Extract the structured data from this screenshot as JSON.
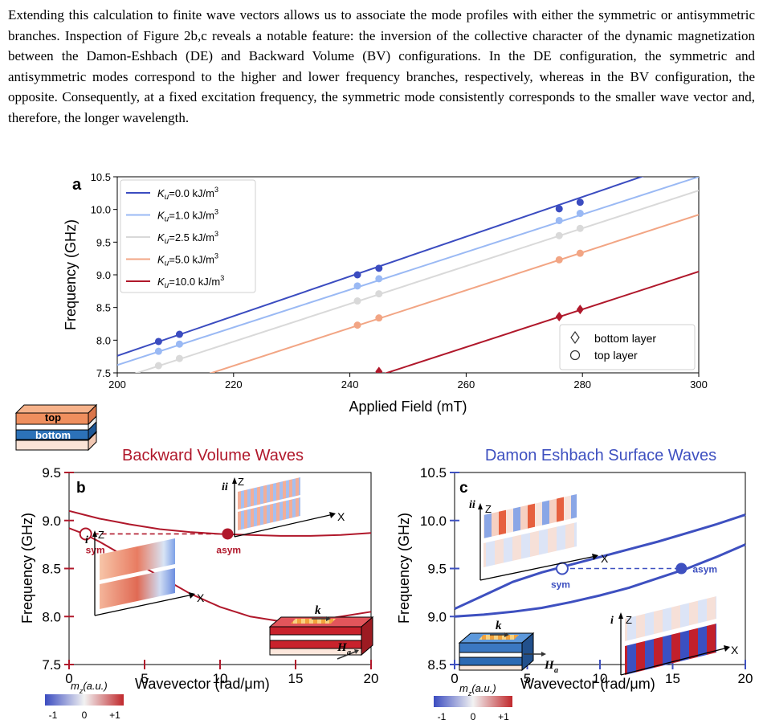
{
  "paragraph": "Extending this calculation to finite wave vectors allows us to associate the mode profiles with either the symmetric or antisymmetric branches. Inspection of Figure 2b,c reveals a notable feature: the inversion of the collective character of the dynamic magnetization between the Damon-Eshbach (DE) and Backward Volume (BV) configurations. In the DE configuration, the symmetric and antisymmetric modes correspond to the higher and lower frequency branches, respectively, whereas in the BV configuration, the opposite. Consequently, at a fixed excitation frequency, the symmetric mode consistently corresponds to the smaller wave vector and, therefore, the longer wavelength.",
  "figure": {
    "colors": {
      "bv": "#b0182b",
      "de": "#3e50c0",
      "k0": "#3b4cc0",
      "k1": "#9ab9f4",
      "k25": "#d9d9d9",
      "k5": "#f2a584",
      "k10": "#b0182b"
    },
    "stack_labels": {
      "top": "top",
      "bottom": "bottom"
    },
    "colorbar": {
      "label": "m_z(a.u.)",
      "ticks": [
        "-1",
        "0",
        "+1"
      ]
    },
    "vectors": {
      "k": "k",
      "H": "H",
      "H_sub": "a"
    }
  },
  "chart_data": [
    {
      "panel": "a",
      "type": "line",
      "xlabel": "Applied Field (mT)",
      "ylabel": "Frequency (GHz)",
      "xlim": [
        200,
        300
      ],
      "ylim": [
        7.5,
        10.5
      ],
      "xticks": [
        "200",
        "220",
        "240",
        "260",
        "280",
        "300"
      ],
      "yticks": [
        "7.5",
        "8.0",
        "8.5",
        "9.0",
        "9.5",
        "10.0",
        "10.5"
      ],
      "legend_position": "top-left",
      "series": [
        {
          "name": "Ku=0.0 kJ/m3",
          "label_main": "K",
          "label_sub": "u",
          "label_tail": "=0.0 kJ/m",
          "label_sup": "3",
          "line": [
            [
              200,
              7.76
            ],
            [
              300,
              10.8
            ]
          ],
          "points": [
            [
              207.1,
              7.98
            ],
            [
              210.7,
              8.09
            ],
            [
              241.3,
              9.0
            ],
            [
              245.0,
              9.1
            ],
            [
              276.0,
              10.01
            ],
            [
              279.6,
              10.11
            ]
          ]
        },
        {
          "name": "Ku=1.0 kJ/m3",
          "label_main": "K",
          "label_sub": "u",
          "label_tail": "=1.0 kJ/m",
          "label_sup": "3",
          "line": [
            [
              200,
              7.62
            ],
            [
              300,
              10.5
            ]
          ],
          "points": [
            [
              207.1,
              7.83
            ],
            [
              210.7,
              7.94
            ],
            [
              241.3,
              8.83
            ],
            [
              245.0,
              8.94
            ],
            [
              276.0,
              9.83
            ],
            [
              279.6,
              9.94
            ]
          ]
        },
        {
          "name": "Ku=2.5 kJ/m3",
          "label_main": "K",
          "label_sub": "u",
          "label_tail": "=2.5 kJ/m",
          "label_sup": "3",
          "line": [
            [
              200,
              7.4
            ],
            [
              300,
              10.29
            ]
          ],
          "points": [
            [
              207.1,
              7.61
            ],
            [
              210.7,
              7.72
            ],
            [
              241.3,
              8.6
            ],
            [
              245.0,
              8.71
            ],
            [
              276.0,
              9.6
            ],
            [
              279.6,
              9.71
            ]
          ]
        },
        {
          "name": "Ku=5.0 kJ/m3",
          "label_main": "K",
          "label_sub": "u",
          "label_tail": "=5.0 kJ/m",
          "label_sup": "3",
          "line": [
            [
              200,
              7.03
            ],
            [
              300,
              9.92
            ]
          ],
          "points": [
            [
              241.3,
              8.23
            ],
            [
              245.0,
              8.34
            ],
            [
              276.0,
              9.23
            ],
            [
              279.6,
              9.33
            ]
          ]
        },
        {
          "name": "Ku=10.0 kJ/m3",
          "label_main": "K",
          "label_sub": "u",
          "label_tail": "=10.0 kJ/m",
          "label_sup": "3",
          "line": [
            [
              200,
              6.16
            ],
            [
              300,
              9.05
            ]
          ],
          "points": [
            [
              245.0,
              7.52
            ],
            [
              276.0,
              8.36
            ],
            [
              279.6,
              8.47
            ]
          ]
        }
      ],
      "marker_legend": [
        {
          "symbol": "diamond",
          "label": "bottom layer"
        },
        {
          "symbol": "circle",
          "label": "top layer"
        }
      ]
    },
    {
      "panel": "b",
      "type": "line",
      "title": "Backward Volume Waves",
      "xlabel": "Wavevector (rad/μm)",
      "ylabel": "Frequency (GHz)",
      "xlim": [
        0,
        20
      ],
      "ylim": [
        7.5,
        9.5
      ],
      "xticks": [
        "0",
        "5",
        "10",
        "15",
        "20"
      ],
      "yticks": [
        "7.5",
        "8.0",
        "8.5",
        "9.0",
        "9.5"
      ],
      "series": [
        {
          "branch": "upper",
          "x": [
            0,
            1,
            2,
            3,
            4,
            6,
            8,
            10,
            12,
            14,
            16,
            18,
            20
          ],
          "y": [
            9.1,
            9.06,
            9.02,
            8.99,
            8.96,
            8.91,
            8.88,
            8.86,
            8.85,
            8.84,
            8.84,
            8.85,
            8.87
          ]
        },
        {
          "branch": "lower",
          "x": [
            0,
            1,
            2,
            4,
            6,
            8,
            10,
            12,
            14,
            16,
            18,
            20
          ],
          "y": [
            8.92,
            8.86,
            8.78,
            8.6,
            8.42,
            8.24,
            8.1,
            8.0,
            7.95,
            7.95,
            8.0,
            8.05
          ]
        }
      ],
      "annotations": [
        {
          "label": "sym",
          "x": 1.1,
          "y": 8.86,
          "marker": "open-circle"
        },
        {
          "label": "asym",
          "x": 10.5,
          "y": 8.86,
          "marker": "filled-circle"
        },
        {
          "label": "i"
        },
        {
          "label": "ii"
        }
      ]
    },
    {
      "panel": "c",
      "type": "line",
      "title": "Damon Eshbach Surface Waves",
      "xlabel": "Wavevector (rad/μm)",
      "ylabel": "Frequency (GHz)",
      "xlim": [
        0,
        20
      ],
      "ylim": [
        8.5,
        10.5
      ],
      "xticks": [
        "0",
        "5",
        "10",
        "15",
        "20"
      ],
      "yticks": [
        "8.5",
        "9.0",
        "9.5",
        "10.0",
        "10.5"
      ],
      "series": [
        {
          "branch": "upper",
          "x": [
            0,
            2,
            4,
            6,
            8,
            10,
            12,
            14,
            16,
            18,
            20
          ],
          "y": [
            9.08,
            9.22,
            9.36,
            9.46,
            9.54,
            9.62,
            9.7,
            9.78,
            9.87,
            9.96,
            10.06
          ]
        },
        {
          "branch": "lower",
          "x": [
            0,
            2,
            4,
            6,
            8,
            10,
            12,
            14,
            16,
            18,
            20
          ],
          "y": [
            9.0,
            9.02,
            9.05,
            9.09,
            9.15,
            9.22,
            9.3,
            9.4,
            9.5,
            9.62,
            9.75
          ]
        }
      ],
      "annotations": [
        {
          "label": "sym",
          "x": 7.4,
          "y": 9.5,
          "marker": "open-circle"
        },
        {
          "label": "asym",
          "x": 15.6,
          "y": 9.5,
          "marker": "filled-circle"
        },
        {
          "label": "i"
        },
        {
          "label": "ii"
        }
      ]
    }
  ]
}
